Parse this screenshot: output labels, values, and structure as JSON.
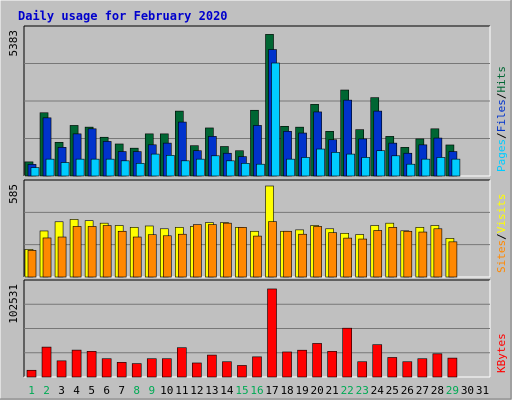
{
  "title": "Daily usage for February 2020",
  "colors": {
    "background": "#C0C0C0",
    "frame": "#ffffff",
    "title": "#0000CC",
    "hits": "#006633",
    "files": "#0033CC",
    "pages": "#00CCFF",
    "visits": "#FFFF00",
    "sites": "#FF8800",
    "kbytes": "#FF0000",
    "grid": "#777777",
    "weekend_day": "#00AA55"
  },
  "chart_data": [
    {
      "type": "bar",
      "panel": "top",
      "ymax_label": "5383",
      "ylim": [
        0,
        5383
      ],
      "legend": [
        "Pages",
        "/",
        "Files",
        "/",
        "Hits"
      ],
      "categories": [
        "1",
        "2",
        "3",
        "4",
        "5",
        "6",
        "7",
        "8",
        "9",
        "10",
        "11",
        "12",
        "13",
        "14",
        "15",
        "16",
        "17",
        "18",
        "19",
        "20",
        "21",
        "22",
        "23",
        "24",
        "25",
        "26",
        "27",
        "28",
        "29",
        "30",
        "31"
      ],
      "series": [
        {
          "name": "Hits",
          "values": [
            528,
            2364,
            1260,
            1890,
            1827,
            1449,
            1197,
            1040,
            1575,
            1575,
            2426,
            1134,
            1796,
            1103,
            945,
            2458,
            5294,
            1858,
            1826,
            2678,
            1670,
            3214,
            1733,
            2930,
            1480,
            1071,
            1386,
            1764,
            1160,
            0,
            0
          ]
        },
        {
          "name": "Files",
          "values": [
            434,
            2174,
            1071,
            1575,
            1764,
            1292,
            914,
            913,
            1166,
            1229,
            2016,
            945,
            1480,
            851,
            725,
            1890,
            4727,
            1670,
            1606,
            2395,
            1355,
            2836,
            1386,
            2426,
            1229,
            851,
            1164,
            1418,
            914,
            0,
            0
          ]
        },
        {
          "name": "Pages",
          "values": [
            315,
            630,
            504,
            630,
            630,
            630,
            567,
            472,
            819,
            772,
            567,
            630,
            755,
            567,
            472,
            441,
            4223,
            630,
            693,
            1008,
            882,
            819,
            693,
            945,
            755,
            441,
            630,
            693,
            630,
            0,
            0
          ]
        }
      ],
      "weekend_days": [
        "1",
        "2",
        "8",
        "9",
        "15",
        "16",
        "22",
        "23",
        "29"
      ]
    },
    {
      "type": "bar",
      "panel": "middle",
      "ymax_label": "585",
      "ylim": [
        0,
        585
      ],
      "legend": [
        "Sites",
        "/",
        "Visits"
      ],
      "series": [
        {
          "name": "Visits",
          "values": [
            177,
            296,
            355,
            370,
            362,
            346,
            331,
            319,
            328,
            310,
            319,
            325,
            350,
            350,
            319,
            294,
            585,
            294,
            303,
            331,
            310,
            281,
            273,
            331,
            346,
            297,
            319,
            331,
            248,
            0,
            0
          ]
        },
        {
          "name": "Sites",
          "values": [
            171,
            251,
            257,
            325,
            325,
            331,
            294,
            257,
            272,
            265,
            275,
            337,
            337,
            346,
            319,
            263,
            356,
            294,
            275,
            325,
            285,
            250,
            244,
            299,
            319,
            294,
            289,
            310,
            226,
            0,
            0
          ]
        }
      ]
    },
    {
      "type": "bar",
      "panel": "bottom",
      "ymax_label": "102531",
      "ylim": [
        0,
        102531
      ],
      "legend": [
        "KBytes"
      ],
      "series": [
        {
          "name": "KBytes",
          "values": [
            7600,
            33700,
            18200,
            30300,
            28900,
            20600,
            16500,
            15100,
            20600,
            20600,
            33000,
            15800,
            24700,
            17200,
            13000,
            22700,
            99200,
            28200,
            30200,
            37800,
            28900,
            55000,
            17200,
            36400,
            22000,
            17200,
            20600,
            26100,
            21300,
            0,
            0
          ]
        }
      ]
    }
  ]
}
